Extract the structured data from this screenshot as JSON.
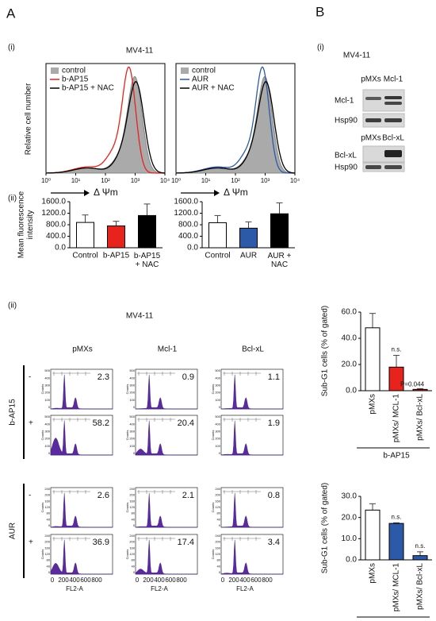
{
  "panel_labels": {
    "a": "A",
    "b": "B",
    "a_i": "(i)",
    "a_ii": "(ii)",
    "b_i": "(i)",
    "lower_ii": "(ii)"
  },
  "histograms": {
    "title": "MV4-11",
    "ylabel": "Relative cell number",
    "xticks": [
      "10⁰",
      "10¹",
      "10²",
      "10³",
      "10⁴"
    ],
    "xlabel": "Δ Ψm",
    "legends": [
      [
        "control",
        "b-AP15",
        "b-AP15 + NAC"
      ],
      [
        "control",
        "AUR",
        "AUR + NAC"
      ]
    ]
  },
  "blot": {
    "title": "MV4-11",
    "lanes_top": [
      "pMXs",
      "Mcl-1"
    ],
    "rows_top": [
      "Mcl-1",
      "Hsp90"
    ],
    "lanes_bottom": [
      "pMXs",
      "Bcl-xL"
    ],
    "rows_bottom": [
      "Bcl-xL",
      "Hsp90"
    ]
  },
  "flow": {
    "title": "MV4-11",
    "columns": [
      "pMXs",
      "Mcl-1",
      "Bcl-xL"
    ],
    "groups": [
      "b-AP15",
      "AUR"
    ],
    "signs": [
      "-",
      "+",
      "-",
      "+"
    ],
    "values": [
      [
        "2.3",
        "0.9",
        "1.1"
      ],
      [
        "58.2",
        "20.4",
        "1.9"
      ],
      [
        "2.6",
        "2.1",
        "0.8"
      ],
      [
        "36.9",
        "17.4",
        "3.4"
      ]
    ],
    "yticks_top": [
      "500",
      "400",
      "300",
      "200",
      "100",
      "0"
    ],
    "yticks_bottom": [
      "240",
      "200",
      "160",
      "120",
      "80",
      "40",
      "0"
    ],
    "ylabel": "Counts",
    "xticks": [
      "0",
      "200",
      "400",
      "600",
      "800"
    ],
    "xlabel": "FL2-A"
  },
  "chart_data": [
    {
      "type": "bar",
      "ylabel": "Mean fluorescence intensity",
      "categories": [
        "Control",
        "b-AP15",
        "b-AP15\n+ NAC"
      ],
      "values": [
        880,
        760,
        1120
      ],
      "errors": [
        260,
        160,
        400
      ],
      "colors": [
        "#ffffff",
        "#e8221c",
        "#000000"
      ],
      "ylim": [
        0,
        1600
      ],
      "yticks": [
        {
          "value": 0,
          "label": "0.0"
        },
        {
          "value": 400,
          "label": "400.0"
        },
        {
          "value": 800,
          "label": "800.0"
        },
        {
          "value": 1200,
          "label": "1200.0"
        },
        {
          "value": 1600,
          "label": "1600.0"
        }
      ]
    },
    {
      "type": "bar",
      "categories": [
        "Control",
        "AUR",
        "AUR +\nNAC"
      ],
      "values": [
        870,
        680,
        1180
      ],
      "errors": [
        250,
        220,
        380
      ],
      "colors": [
        "#ffffff",
        "#2c5aa8",
        "#000000"
      ],
      "ylim": [
        0,
        1600
      ],
      "yticks": [
        {
          "value": 0,
          "label": "0.0"
        },
        {
          "value": 400,
          "label": "400.0"
        },
        {
          "value": 800,
          "label": "800.0"
        },
        {
          "value": 1200,
          "label": "1200.0"
        },
        {
          "value": 1600,
          "label": "1600.0"
        }
      ]
    },
    {
      "type": "bar",
      "ylabel": "Sub-G1 cells (% of gated)",
      "xlabel": "b-AP15",
      "categories": [
        "pMXs",
        "pMXs/ MCL-1",
        "pMXs/ Bcl-xL"
      ],
      "values": [
        48,
        18,
        1
      ],
      "errors": [
        11,
        9,
        0.6
      ],
      "colors": [
        "#ffffff",
        "#e8221c",
        "#e8221c"
      ],
      "annotations": [
        {
          "category": 1,
          "text": "n.s."
        },
        {
          "category": 2,
          "text": "P=0.044"
        }
      ],
      "ylim": [
        0,
        60
      ],
      "yticks": [
        {
          "value": 0,
          "label": "0.0"
        },
        {
          "value": 20,
          "label": "20.0"
        },
        {
          "value": 40,
          "label": "40.0"
        },
        {
          "value": 60,
          "label": "60.0"
        }
      ]
    },
    {
      "type": "bar",
      "ylabel": "Sub-G1 cells (% of gated)",
      "xlabel": "AUR",
      "categories": [
        "pMXs",
        "pMXs/ MCL-1",
        "pMXs/ Bcl-xL"
      ],
      "values": [
        23.5,
        17.2,
        2
      ],
      "errors": [
        3,
        0.3,
        1.8
      ],
      "colors": [
        "#ffffff",
        "#2c5aa8",
        "#2c5aa8"
      ],
      "annotations": [
        {
          "category": 1,
          "text": "n.s."
        },
        {
          "category": 2,
          "text": "n.s."
        }
      ],
      "ylim": [
        0,
        30
      ],
      "yticks": [
        {
          "value": 0,
          "label": "0.0"
        },
        {
          "value": 10,
          "label": "10.0"
        },
        {
          "value": 20,
          "label": "20.0"
        },
        {
          "value": 30,
          "label": "30.0"
        }
      ]
    }
  ]
}
